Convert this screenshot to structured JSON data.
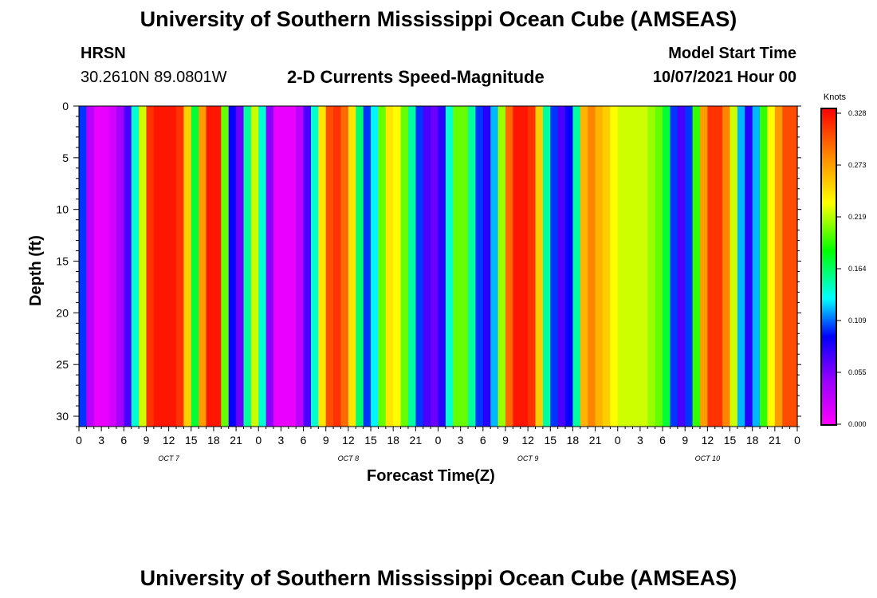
{
  "header": {
    "title_top": "University of Southern Mississippi Ocean Cube (AMSEAS)",
    "title_bottom": "University of Southern Mississippi Ocean Cube (AMSEAS)",
    "station": "HRSN",
    "coordinates": "30.2610N  89.0801W",
    "plot_title": "2-D Currents Speed-Magnitude",
    "model_start_label": "Model Start Time",
    "model_start_value": "10/07/2021 Hour 00"
  },
  "chart_data": {
    "type": "heatmap",
    "title": "2-D Currents Speed-Magnitude",
    "xlabel": "Forecast Time(Z)",
    "ylabel": "Depth (ft)",
    "x_tick_labels": [
      "0",
      "3",
      "6",
      "9",
      "12",
      "15",
      "18",
      "21",
      "0",
      "3",
      "6",
      "9",
      "12",
      "15",
      "18",
      "21",
      "0",
      "3",
      "6",
      "9",
      "12",
      "15",
      "18",
      "21",
      "0",
      "3",
      "6",
      "9",
      "12",
      "15",
      "18",
      "21",
      "0"
    ],
    "x_hours": [
      0,
      3,
      6,
      9,
      12,
      15,
      18,
      21,
      24,
      27,
      30,
      33,
      36,
      39,
      42,
      45,
      48,
      51,
      54,
      57,
      60,
      63,
      66,
      69,
      72,
      75,
      78,
      81,
      84,
      87,
      90,
      93,
      96
    ],
    "xlim": [
      0,
      96
    ],
    "day_labels": [
      {
        "text": "OCT 7",
        "hour": 12
      },
      {
        "text": "OCT 8",
        "hour": 36
      },
      {
        "text": "OCT 9",
        "hour": 60
      },
      {
        "text": "OCT 10",
        "hour": 84
      }
    ],
    "y_ticks": [
      0,
      5,
      10,
      15,
      20,
      25,
      30
    ],
    "ylim": [
      0,
      31
    ],
    "y_inverted": true,
    "colorbar": {
      "unit": "Knots",
      "ticks": [
        "0.328",
        "0.273",
        "0.219",
        "0.164",
        "0.109",
        "0.055",
        "0.000"
      ],
      "min": 0.0,
      "max": 0.328
    },
    "surface_speed_by_hour": [
      [
        0,
        0.1
      ],
      [
        1,
        0.03
      ],
      [
        2,
        0.01
      ],
      [
        3,
        0.01
      ],
      [
        4,
        0.02
      ],
      [
        5,
        0.04
      ],
      [
        6,
        0.07
      ],
      [
        7,
        0.14
      ],
      [
        8,
        0.22
      ],
      [
        9,
        0.31
      ],
      [
        10,
        0.32
      ],
      [
        11,
        0.32
      ],
      [
        12,
        0.32
      ],
      [
        13,
        0.31
      ],
      [
        14,
        0.25
      ],
      [
        15,
        0.17
      ],
      [
        16,
        0.27
      ],
      [
        17,
        0.32
      ],
      [
        18,
        0.32
      ],
      [
        19,
        0.2
      ],
      [
        20,
        0.09
      ],
      [
        21,
        0.06
      ],
      [
        22,
        0.15
      ],
      [
        23,
        0.22
      ],
      [
        24,
        0.14
      ],
      [
        25,
        0.05
      ],
      [
        26,
        0.01
      ],
      [
        27,
        0.01
      ],
      [
        28,
        0.01
      ],
      [
        29,
        0.03
      ],
      [
        30,
        0.07
      ],
      [
        31,
        0.14
      ],
      [
        32,
        0.24
      ],
      [
        33,
        0.3
      ],
      [
        34,
        0.31
      ],
      [
        35,
        0.29
      ],
      [
        36,
        0.24
      ],
      [
        37,
        0.16
      ],
      [
        38,
        0.1
      ],
      [
        39,
        0.13
      ],
      [
        40,
        0.2
      ],
      [
        41,
        0.24
      ],
      [
        42,
        0.23
      ],
      [
        43,
        0.2
      ],
      [
        44,
        0.15
      ],
      [
        45,
        0.1
      ],
      [
        46,
        0.07
      ],
      [
        47,
        0.06
      ],
      [
        48,
        0.08
      ],
      [
        49,
        0.14
      ],
      [
        50,
        0.2
      ],
      [
        51,
        0.2
      ],
      [
        52,
        0.15
      ],
      [
        53,
        0.1
      ],
      [
        54,
        0.08
      ],
      [
        55,
        0.12
      ],
      [
        56,
        0.21
      ],
      [
        57,
        0.29
      ],
      [
        58,
        0.32
      ],
      [
        59,
        0.32
      ],
      [
        60,
        0.31
      ],
      [
        61,
        0.25
      ],
      [
        62,
        0.15
      ],
      [
        63,
        0.1
      ],
      [
        64,
        0.07
      ],
      [
        65,
        0.09
      ],
      [
        66,
        0.15
      ],
      [
        67,
        0.26
      ],
      [
        68,
        0.28
      ],
      [
        69,
        0.26
      ],
      [
        70,
        0.25
      ],
      [
        71,
        0.23
      ],
      [
        72,
        0.22
      ],
      [
        73,
        0.22
      ],
      [
        74,
        0.22
      ],
      [
        75,
        0.22
      ],
      [
        76,
        0.21
      ],
      [
        77,
        0.2
      ],
      [
        78,
        0.17
      ],
      [
        79,
        0.1
      ],
      [
        80,
        0.07
      ],
      [
        81,
        0.1
      ],
      [
        82,
        0.19
      ],
      [
        83,
        0.27
      ],
      [
        84,
        0.31
      ],
      [
        85,
        0.31
      ],
      [
        86,
        0.28
      ],
      [
        87,
        0.22
      ],
      [
        88,
        0.12
      ],
      [
        89,
        0.08
      ],
      [
        90,
        0.12
      ],
      [
        91,
        0.19
      ],
      [
        92,
        0.23
      ],
      [
        93,
        0.27
      ],
      [
        94,
        0.3
      ],
      [
        95,
        0.3
      ],
      [
        96,
        0.29
      ]
    ]
  }
}
